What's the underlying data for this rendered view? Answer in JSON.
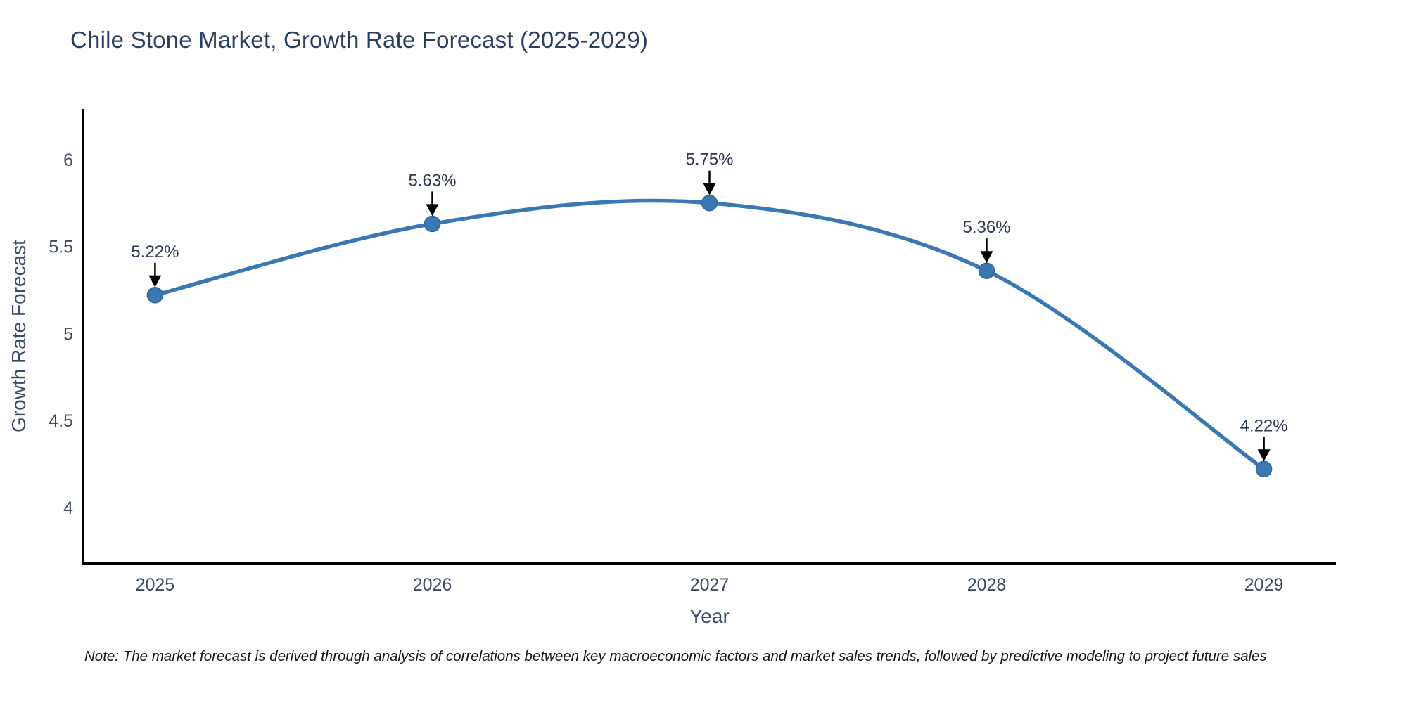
{
  "header": {
    "title": "Chile Stone Market, Growth Rate Forecast (2025-2029)"
  },
  "chart_data": {
    "type": "line",
    "title": "Chile Stone Market, Growth Rate Forecast (2025-2029)",
    "categories": [
      "2025",
      "2026",
      "2027",
      "2028",
      "2029"
    ],
    "x": [
      2025,
      2026,
      2027,
      2028,
      2029
    ],
    "values": [
      5.22,
      5.63,
      5.75,
      5.36,
      4.22
    ],
    "point_labels": [
      "5.22%",
      "5.63%",
      "5.75%",
      "5.36%",
      "4.22%"
    ],
    "xlabel": "Year",
    "ylabel": "Growth Rate Forecast",
    "yticks": [
      4,
      4.5,
      5,
      5.5,
      6
    ],
    "ytick_labels": [
      "4",
      "4.5",
      "5",
      "5.5",
      "6"
    ],
    "ylim": [
      3.68,
      6.29
    ],
    "xlim": [
      2024.74,
      2029.26
    ],
    "grid": false,
    "legend": false,
    "curve": "spline",
    "line_color": "#3a78b3",
    "marker_color": "#3a78b3",
    "marker_edge_color": "#2f6699",
    "axis_line_color": "#000000",
    "tick_label_color": "#3f4a63",
    "axis_title_color": "#3b4a68",
    "annotation_color": "#2f3a52",
    "arrow_color": "#000000"
  },
  "note": {
    "text": "Note: The market forecast is derived through analysis of correlations between key macroeconomic factors and market sales trends, followed by predictive modeling to project future sales"
  }
}
